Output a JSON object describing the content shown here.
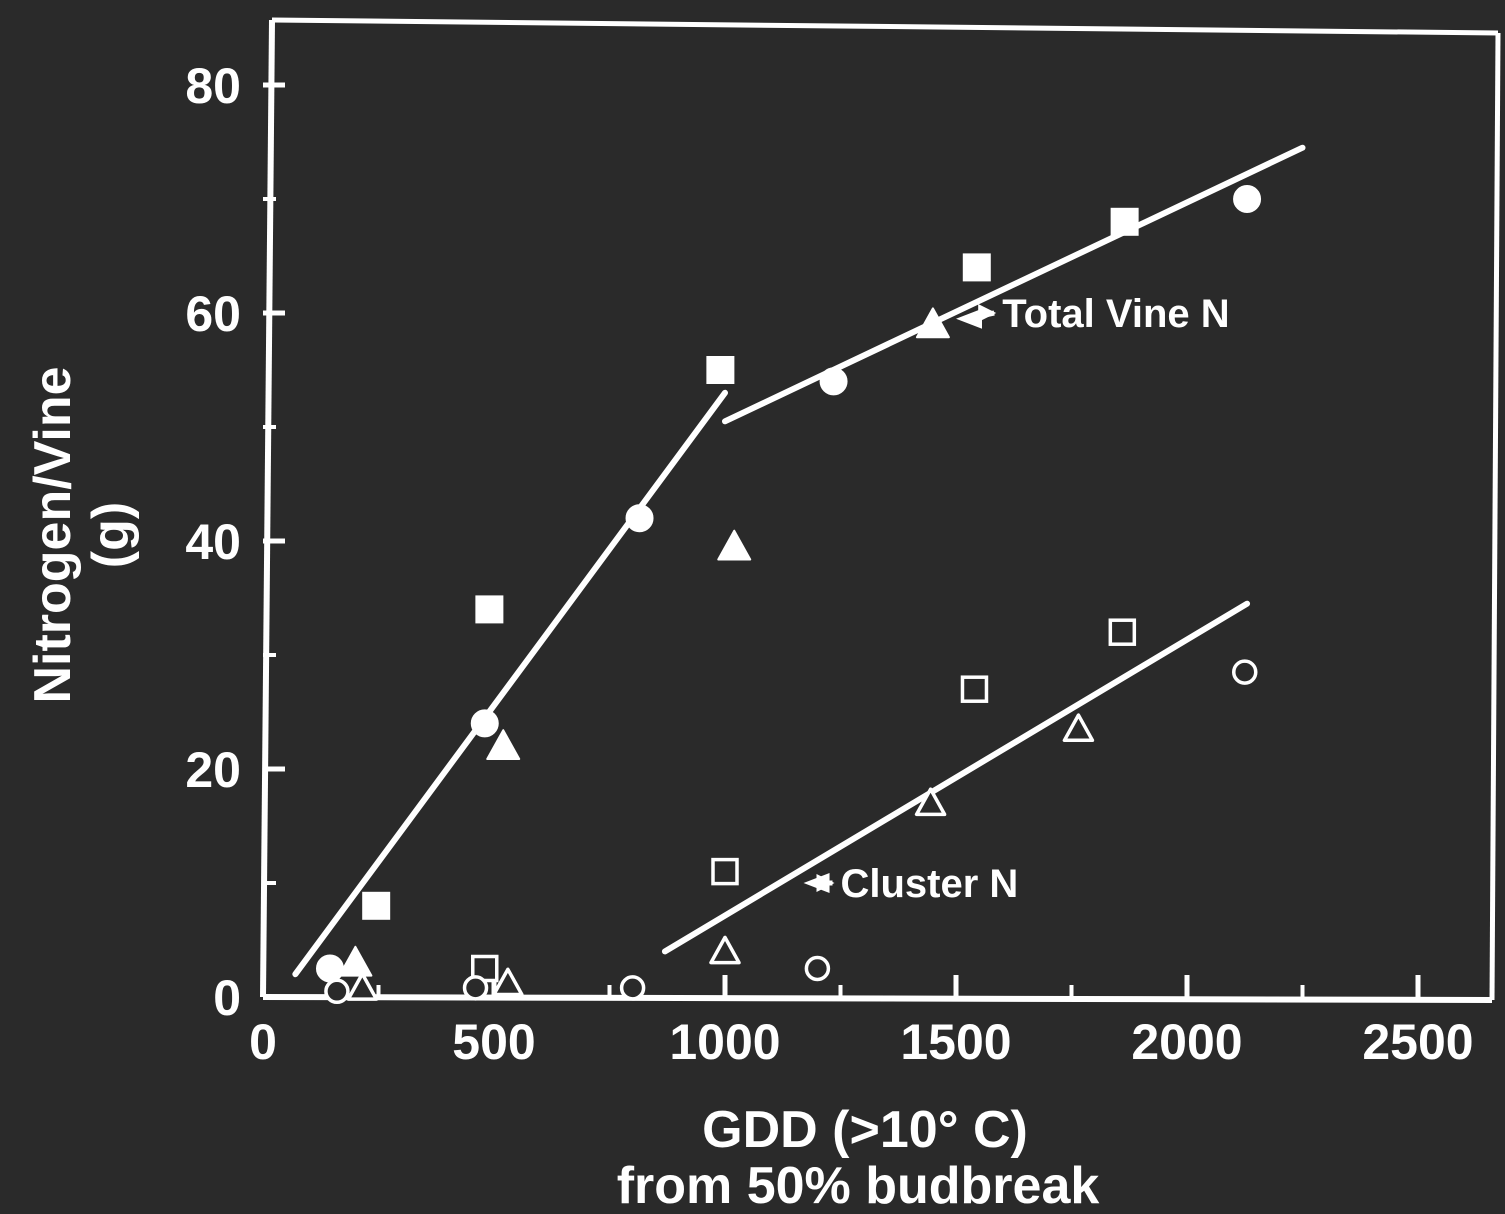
{
  "chart_data": {
    "type": "scatter",
    "title": "",
    "xlabel": "GDD (>10° C)",
    "xlabel_line2": "from 50% budbreak",
    "ylabel": "Nitrogen/Vine",
    "ylabel_unit": "(g)",
    "xlim": [
      0,
      2700
    ],
    "ylim": [
      0,
      85
    ],
    "x_ticks": [
      0,
      500,
      1000,
      1500,
      2000,
      2500
    ],
    "x_tick_labels": [
      "0",
      "500",
      "1000",
      "1500",
      "2000",
      "2500"
    ],
    "x_minor_ticks": [
      250,
      750,
      1250,
      1750,
      2250
    ],
    "y_ticks": [
      0,
      20,
      40,
      60,
      80
    ],
    "y_tick_labels": [
      "0",
      "20",
      "40",
      "60",
      "80"
    ],
    "y_minor_ticks": [
      10,
      30,
      50,
      70
    ],
    "grid": false,
    "colors": {
      "background": "#2a2a2a",
      "foreground": "#ffffff"
    },
    "series": [
      {
        "group": "total",
        "marker": "square",
        "filled": true,
        "points": [
          [
            245,
            8
          ],
          [
            490,
            34
          ],
          [
            990,
            55
          ],
          [
            1545,
            64
          ],
          [
            1865,
            68
          ]
        ]
      },
      {
        "group": "total",
        "marker": "circle",
        "filled": true,
        "points": [
          [
            145,
            2.5
          ],
          [
            480,
            24
          ],
          [
            815,
            42
          ],
          [
            1235,
            54
          ],
          [
            2130,
            70
          ]
        ]
      },
      {
        "group": "total",
        "marker": "triangle",
        "filled": true,
        "points": [
          [
            200,
            3
          ],
          [
            520,
            22
          ],
          [
            1020,
            39.5
          ],
          [
            1450,
            59
          ]
        ]
      },
      {
        "group": "cluster",
        "marker": "square",
        "filled": false,
        "points": [
          [
            480,
            2.5
          ],
          [
            1000,
            11
          ],
          [
            1540,
            27
          ],
          [
            1860,
            32
          ]
        ]
      },
      {
        "group": "cluster",
        "marker": "circle",
        "filled": false,
        "points": [
          [
            160,
            0.5
          ],
          [
            460,
            0.8
          ],
          [
            800,
            0.8
          ],
          [
            1200,
            2.5
          ],
          [
            2125,
            28.5
          ]
        ]
      },
      {
        "group": "cluster",
        "marker": "triangle",
        "filled": false,
        "points": [
          [
            215,
            0.8
          ],
          [
            530,
            1.2
          ],
          [
            1000,
            4
          ],
          [
            1445,
            17
          ],
          [
            1765,
            23.5
          ]
        ]
      }
    ],
    "fit_lines": [
      {
        "group": "total",
        "points": [
          [
            70,
            2
          ],
          [
            1000,
            53
          ]
        ]
      },
      {
        "group": "total",
        "points": [
          [
            1000,
            50.5
          ],
          [
            2250,
            74.5
          ]
        ]
      },
      {
        "group": "cluster",
        "points": [
          [
            870,
            4
          ],
          [
            2130,
            34.5
          ]
        ]
      }
    ],
    "annotations": [
      {
        "text": "Total Vine N",
        "arrow_to": [
          1500,
          59.5
        ],
        "label_at": [
          1600,
          60
        ]
      },
      {
        "text": "Cluster N",
        "arrow_to": [
          1170,
          10
        ],
        "label_at": [
          1250,
          10
        ]
      }
    ]
  }
}
